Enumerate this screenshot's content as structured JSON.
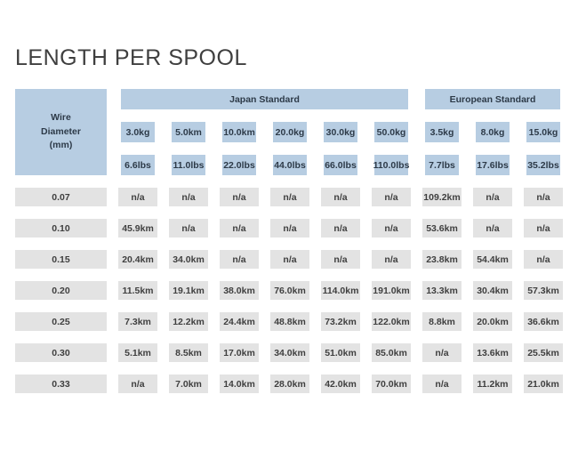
{
  "title": "LENGTH PER SPOOL",
  "colors": {
    "header_bg": "#b7cde2",
    "header_text": "#2d3a48",
    "cell_bg": "#e3e3e3",
    "cell_text": "#3f3f3f",
    "title_text": "#3f3f3f",
    "page_bg": "#ffffff"
  },
  "table": {
    "wire_header_lines": [
      "Wire",
      "Diameter",
      "(mm)"
    ],
    "groups": [
      {
        "label": "Japan Standard",
        "kg": [
          "3.0kg",
          "5.0km",
          "10.0km",
          "20.0kg",
          "30.0kg",
          "50.0kg"
        ],
        "lbs": [
          "6.6lbs",
          "11.0lbs",
          "22.0lbs",
          "44.0lbs",
          "66.0lbs",
          "110.0lbs"
        ]
      },
      {
        "label": "European Standard",
        "kg": [
          "3.5kg",
          "8.0kg",
          "15.0kg"
        ],
        "lbs": [
          "7.7lbs",
          "17.6lbs",
          "35.2lbs"
        ]
      }
    ],
    "rows": [
      {
        "diameter": "0.07",
        "values": [
          "n/a",
          "n/a",
          "n/a",
          "n/a",
          "n/a",
          "n/a",
          "109.2km",
          "n/a",
          "n/a"
        ]
      },
      {
        "diameter": "0.10",
        "values": [
          "45.9km",
          "n/a",
          "n/a",
          "n/a",
          "n/a",
          "n/a",
          "53.6km",
          "n/a",
          "n/a"
        ]
      },
      {
        "diameter": "0.15",
        "values": [
          "20.4km",
          "34.0km",
          "n/a",
          "n/a",
          "n/a",
          "n/a",
          "23.8km",
          "54.4km",
          "n/a"
        ]
      },
      {
        "diameter": "0.20",
        "values": [
          "11.5km",
          "19.1km",
          "38.0km",
          "76.0km",
          "114.0km",
          "191.0km",
          "13.3km",
          "30.4km",
          "57.3km"
        ]
      },
      {
        "diameter": "0.25",
        "values": [
          "7.3km",
          "12.2km",
          "24.4km",
          "48.8km",
          "73.2km",
          "122.0km",
          "8.8km",
          "20.0km",
          "36.6km"
        ]
      },
      {
        "diameter": "0.30",
        "values": [
          "5.1km",
          "8.5km",
          "17.0km",
          "34.0km",
          "51.0km",
          "85.0km",
          "n/a",
          "13.6km",
          "25.5km"
        ]
      },
      {
        "diameter": "0.33",
        "values": [
          "n/a",
          "7.0km",
          "14.0km",
          "28.0km",
          "42.0km",
          "70.0km",
          "n/a",
          "11.2km",
          "21.0km"
        ]
      }
    ]
  }
}
